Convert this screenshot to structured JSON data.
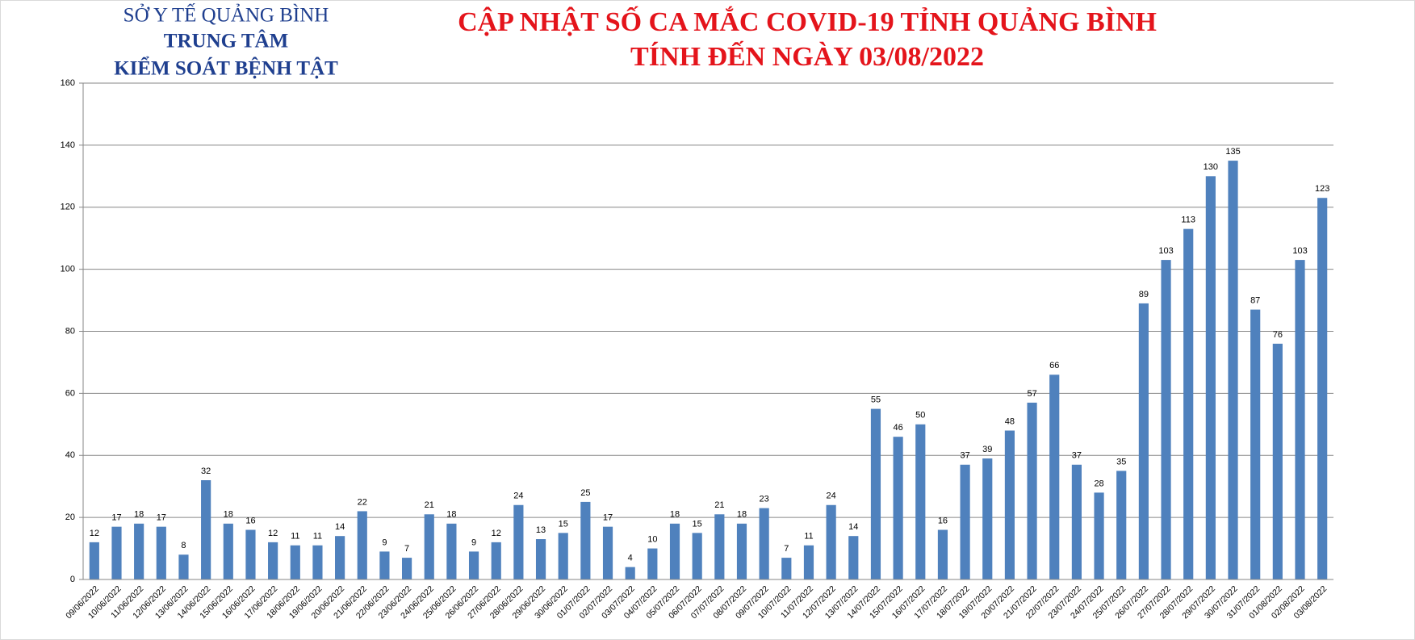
{
  "header": {
    "line1": "SỞ Y TẾ QUẢNG BÌNH",
    "line2": "TRUNG TÂM",
    "line3": "KIỂM SOÁT BỆNH TẬT"
  },
  "chart_data": {
    "type": "bar",
    "title": "CẬP NHẬT SỐ CA MẮC COVID-19 TỈNH QUẢNG BÌNH",
    "subtitle": "TÍNH ĐẾN NGÀY 03/08/2022",
    "categories": [
      "09/06/2022",
      "10/06/2022",
      "11/06/2022",
      "12/06/2022",
      "13/06/2022",
      "14/06/2022",
      "15/06/2022",
      "16/06/2022",
      "17/06/2022",
      "18/06/2022",
      "19/06/2022",
      "20/06/2022",
      "21/06/2022",
      "22/06/2022",
      "23/06/2022",
      "24/06/2022",
      "25/06/2022",
      "26/06/2022",
      "27/06/2022",
      "28/06/2022",
      "29/06/2022",
      "30/06/2022",
      "01/07/2022",
      "02/07/2022",
      "03/07/2022",
      "04/07/2022",
      "05/07/2022",
      "06/07/2022",
      "07/07/2022",
      "08/07/2022",
      "09/07/2022",
      "10/07/2022",
      "11/07/2022",
      "12/07/2022",
      "13/07/2022",
      "14/07/2022",
      "15/07/2022",
      "16/07/2022",
      "17/07/2022",
      "18/07/2022",
      "19/07/2022",
      "20/07/2022",
      "21/07/2022",
      "22/07/2022",
      "23/07/2022",
      "24/07/2022",
      "25/07/2022",
      "26/07/2022",
      "27/07/2022",
      "28/07/2022",
      "29/07/2022",
      "30/07/2022",
      "31/07/2022",
      "01/08/2022",
      "02/08/2022",
      "03/08/2022"
    ],
    "values": [
      12,
      17,
      18,
      17,
      8,
      32,
      18,
      16,
      12,
      11,
      11,
      14,
      22,
      9,
      7,
      21,
      18,
      9,
      12,
      24,
      13,
      15,
      25,
      17,
      4,
      10,
      18,
      15,
      21,
      18,
      23,
      7,
      11,
      24,
      14,
      55,
      46,
      50,
      16,
      37,
      39,
      48,
      57,
      66,
      37,
      28,
      35,
      89,
      103,
      113,
      130,
      135,
      87,
      76,
      103,
      123
    ],
    "color": "#4f81bd",
    "ylim": [
      0,
      160
    ],
    "yticks": [
      0,
      20,
      40,
      60,
      80,
      100,
      120,
      140,
      160
    ],
    "grid": true
  }
}
